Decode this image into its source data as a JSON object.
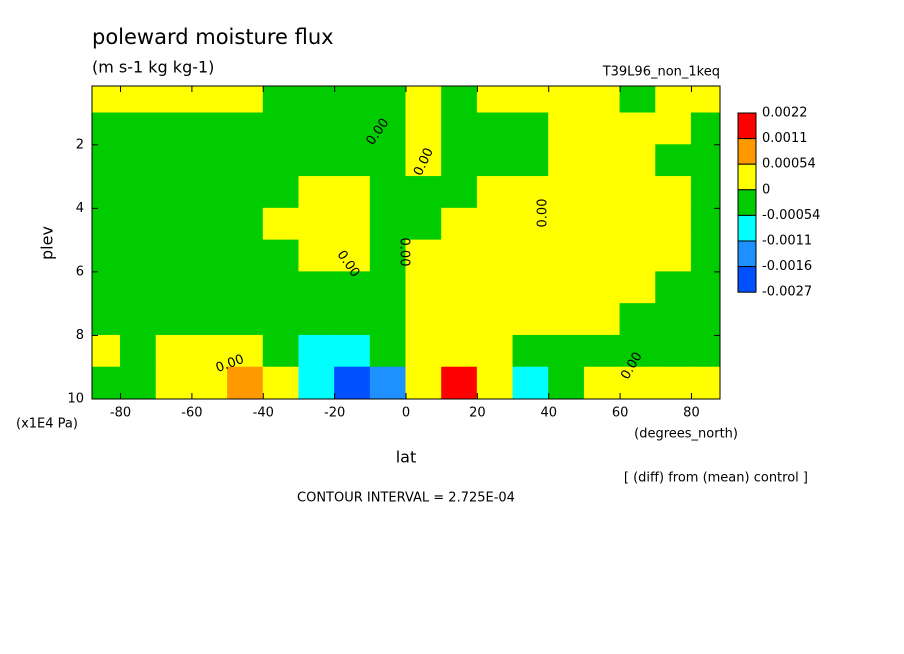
{
  "chart_data": {
    "type": "contour",
    "title": "poleward moisture flux",
    "subtitle": "(m s-1 kg kg-1)",
    "run_label": "T39L96_non_1keq",
    "x_label": "lat",
    "x_unit": "(degrees_north)",
    "y_label": "plev",
    "y_unit": "(x1E4 Pa)",
    "note": "[ (diff) from (mean) control ]",
    "contour_interval": "CONTOUR INTERVAL = 2.725E-04",
    "contour_label": "0.00",
    "xlim": [
      -88,
      88
    ],
    "xticks": [
      -80,
      -60,
      -40,
      -20,
      0,
      20,
      40,
      60,
      80
    ],
    "ylim": [
      10,
      0.15
    ],
    "yticks": [
      2,
      4,
      6,
      8,
      10
    ],
    "levels": [
      0.0022,
      0.0011,
      0.00054,
      0,
      -0.00054,
      -0.0011,
      -0.0016,
      -0.0027
    ],
    "colors": [
      "#ff0000",
      "#ff9900",
      "#ffff00",
      "#00cc00",
      "#00ffff",
      "#1e90ff",
      "#0050ff"
    ],
    "x": [
      -85,
      -75,
      -65,
      -55,
      -45,
      -35,
      -25,
      -15,
      -5,
      5,
      15,
      25,
      35,
      45,
      55,
      65,
      75,
      85
    ],
    "y": [
      0.5,
      1.5,
      2.5,
      3.5,
      4.5,
      5.5,
      6.5,
      7.5,
      8.5,
      9.5
    ],
    "z": [
      [
        0.0003,
        0.0003,
        0.0003,
        0.0003,
        0.0003,
        -0.0003,
        -0.0003,
        -0.0003,
        -0.0003,
        0.0003,
        -0.0003,
        0.0003,
        0.0003,
        0.0003,
        0.0003,
        -0.0003,
        0.0003,
        0.0003
      ],
      [
        -0.0003,
        -0.0003,
        -0.0003,
        -0.0003,
        -0.0003,
        -0.0003,
        -0.0003,
        -0.0003,
        -0.0003,
        0.0003,
        -0.0003,
        -0.0003,
        -0.0003,
        0.0003,
        0.0003,
        0.0003,
        0.0003,
        -0.0003
      ],
      [
        -0.0003,
        -0.0003,
        -0.0003,
        -0.0003,
        -0.0003,
        -0.0003,
        -0.0003,
        -0.0003,
        -0.0003,
        0.0003,
        -0.0003,
        -0.0003,
        -0.0003,
        0.0003,
        0.0003,
        0.0003,
        -0.0003,
        -0.0003
      ],
      [
        -0.0003,
        -0.0003,
        -0.0003,
        -0.0003,
        -0.0003,
        -0.0003,
        0.0003,
        0.0003,
        -0.0003,
        -0.0003,
        -0.0003,
        0.0003,
        0.0003,
        0.0003,
        0.0003,
        0.0003,
        0.0003,
        -0.0003
      ],
      [
        -0.0003,
        -0.0003,
        -0.0003,
        -0.0003,
        -0.0003,
        0.0003,
        0.0003,
        0.0003,
        -0.0003,
        -0.0003,
        0.0003,
        0.0003,
        0.0003,
        0.0003,
        0.0003,
        0.0003,
        0.0003,
        -0.0003
      ],
      [
        -0.0003,
        -0.0003,
        -0.0003,
        -0.0003,
        -0.0003,
        -0.0003,
        0.0003,
        0.0003,
        -0.0003,
        0.0003,
        0.0003,
        0.0003,
        0.0003,
        0.0003,
        0.0003,
        0.0003,
        0.0003,
        -0.0003
      ],
      [
        -0.0003,
        -0.0003,
        -0.0003,
        -0.0003,
        -0.0003,
        -0.0003,
        -0.0003,
        -0.0003,
        -0.0003,
        0.0003,
        0.0003,
        0.0003,
        0.0003,
        0.0003,
        0.0003,
        0.0003,
        -0.0003,
        -0.0003
      ],
      [
        -0.0003,
        -0.0003,
        -0.0003,
        -0.0003,
        -0.0003,
        -0.0003,
        -0.0003,
        -0.0003,
        -0.0003,
        0.0003,
        0.0003,
        0.0003,
        0.0003,
        0.0003,
        0.0003,
        -0.0003,
        -0.0003,
        -0.0003
      ],
      [
        0.0003,
        -0.0003,
        0.0003,
        0.0003,
        0.0003,
        -0.0003,
        -0.0008,
        -0.0008,
        -0.0003,
        0.0003,
        0.0003,
        0.0003,
        -0.0003,
        -0.0003,
        -0.0003,
        -0.0003,
        -0.0003,
        -0.0003
      ],
      [
        -0.0003,
        -0.0003,
        0.0003,
        0.0003,
        0.0008,
        0.0003,
        -0.0008,
        -0.002,
        -0.0013,
        0.0003,
        0.0015,
        0.0003,
        -0.0008,
        -0.0003,
        0.0003,
        0.0003,
        0.0003,
        0.0003
      ]
    ]
  }
}
